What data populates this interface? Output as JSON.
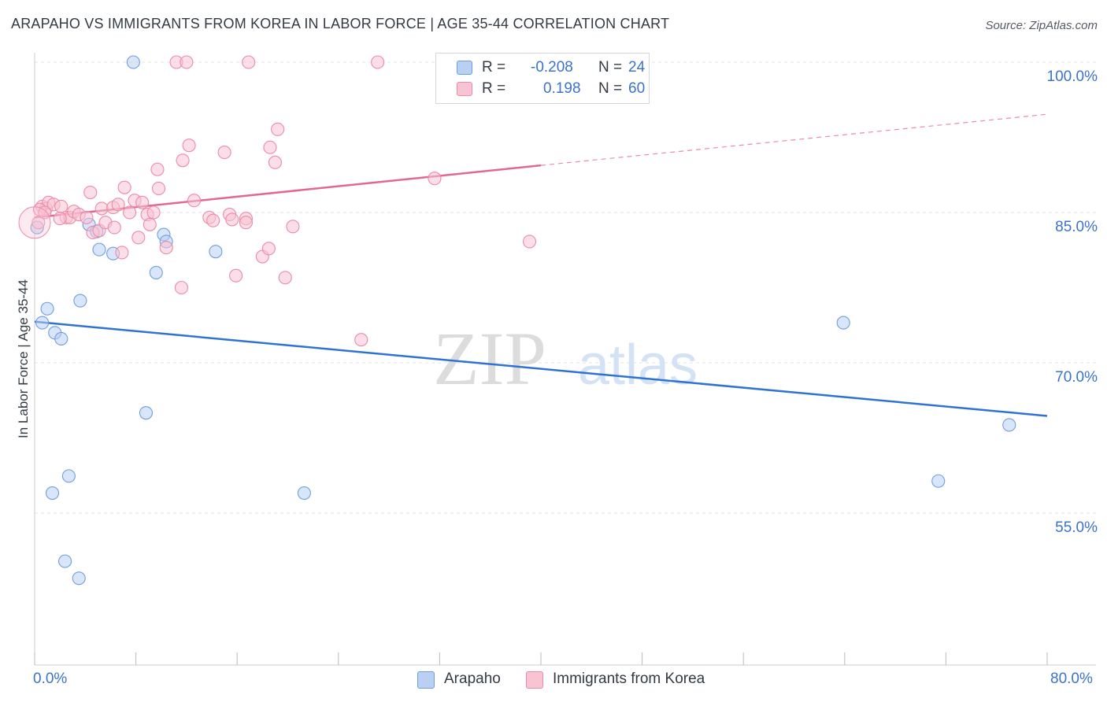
{
  "header": {
    "title": "ARAPAHO VS IMMIGRANTS FROM KOREA IN LABOR FORCE | AGE 35-44 CORRELATION CHART",
    "source": "Source: ZipAtlas.com"
  },
  "watermark": {
    "zip": "ZIP",
    "atlas": "atlas"
  },
  "legend": {
    "r_label": "R =",
    "n_label": "N =",
    "rows": [
      {
        "r": "-0.208",
        "n": "24"
      },
      {
        "r": "0.198",
        "n": "60"
      }
    ]
  },
  "chart_data": {
    "type": "scatter",
    "title": "ARAPAHO VS IMMIGRANTS FROM KOREA IN LABOR FORCE | AGE 35-44 CORRELATION CHART",
    "xlabel": "",
    "ylabel": "In Labor Force | Age 35-44",
    "xlim": [
      0,
      80
    ],
    "ylim": [
      40,
      102
    ],
    "x_tick_labels": [
      "0.0%",
      "80.0%"
    ],
    "y_ticks": [
      55,
      70,
      85,
      100
    ],
    "y_tick_labels": [
      "55.0%",
      "70.0%",
      "85.0%",
      "100.0%"
    ],
    "grid": true,
    "legend_position": "top-center",
    "series": [
      {
        "name": "Arapaho",
        "color": "#6f9ee0",
        "fill": "#b9d0f2",
        "points": [
          [
            0.2,
            83.5
          ],
          [
            0.6,
            74.0
          ],
          [
            1.0,
            75.4
          ],
          [
            1.6,
            73.0
          ],
          [
            2.1,
            72.4
          ],
          [
            1.4,
            57.0
          ],
          [
            2.7,
            58.7
          ],
          [
            2.4,
            50.2
          ],
          [
            3.5,
            48.5
          ],
          [
            3.6,
            76.2
          ],
          [
            4.3,
            83.8
          ],
          [
            4.9,
            83.1
          ],
          [
            5.1,
            81.3
          ],
          [
            6.2,
            80.9
          ],
          [
            7.8,
            100.0
          ],
          [
            8.8,
            65.0
          ],
          [
            9.6,
            79.0
          ],
          [
            10.2,
            82.8
          ],
          [
            10.4,
            82.1
          ],
          [
            14.3,
            81.1
          ],
          [
            21.3,
            57.0
          ],
          [
            63.9,
            74.0
          ],
          [
            71.4,
            58.2
          ],
          [
            77.0,
            63.8
          ]
        ],
        "trend": {
          "x": [
            0,
            80
          ],
          "y": [
            74.1,
            64.7
          ]
        }
      },
      {
        "name": "Immigrants from Korea",
        "color": "#ec8aa8",
        "fill": "#f8c3d3",
        "points": [
          [
            0.3,
            84.0
          ],
          [
            0.6,
            85.6
          ],
          [
            0.9,
            85.4
          ],
          [
            1.1,
            86.0
          ],
          [
            1.5,
            85.8
          ],
          [
            2.1,
            85.6
          ],
          [
            2.5,
            84.5
          ],
          [
            2.8,
            84.5
          ],
          [
            3.1,
            85.1
          ],
          [
            3.5,
            84.8
          ],
          [
            4.1,
            84.5
          ],
          [
            4.4,
            87.0
          ],
          [
            4.6,
            83.0
          ],
          [
            5.1,
            83.2
          ],
          [
            5.3,
            85.4
          ],
          [
            5.6,
            84.0
          ],
          [
            6.2,
            85.5
          ],
          [
            6.3,
            83.5
          ],
          [
            6.6,
            85.8
          ],
          [
            6.9,
            81.0
          ],
          [
            7.1,
            87.5
          ],
          [
            7.5,
            85.0
          ],
          [
            7.9,
            86.2
          ],
          [
            8.2,
            82.5
          ],
          [
            8.5,
            86.0
          ],
          [
            8.9,
            84.8
          ],
          [
            9.1,
            83.8
          ],
          [
            9.4,
            85.0
          ],
          [
            9.7,
            89.3
          ],
          [
            9.8,
            87.4
          ],
          [
            10.4,
            81.5
          ],
          [
            11.2,
            100.0
          ],
          [
            11.6,
            77.5
          ],
          [
            11.7,
            90.2
          ],
          [
            12.0,
            100.0
          ],
          [
            12.2,
            91.7
          ],
          [
            12.6,
            86.2
          ],
          [
            13.8,
            84.5
          ],
          [
            14.1,
            84.2
          ],
          [
            15.0,
            91.0
          ],
          [
            15.4,
            84.8
          ],
          [
            15.6,
            84.3
          ],
          [
            15.9,
            78.7
          ],
          [
            16.7,
            84.4
          ],
          [
            16.7,
            84.0
          ],
          [
            16.9,
            100.0
          ],
          [
            18.0,
            80.6
          ],
          [
            18.5,
            81.4
          ],
          [
            18.6,
            91.5
          ],
          [
            19.0,
            90.0
          ],
          [
            19.2,
            93.3
          ],
          [
            19.8,
            78.5
          ],
          [
            20.4,
            83.6
          ],
          [
            25.8,
            72.3
          ],
          [
            27.1,
            100.0
          ],
          [
            31.6,
            88.4
          ],
          [
            39.1,
            82.1
          ],
          [
            0.4,
            85.3
          ],
          [
            0.8,
            85.0
          ],
          [
            2.0,
            84.4
          ]
        ],
        "trend": {
          "x": [
            0,
            40
          ],
          "y": [
            84.5,
            89.7
          ]
        },
        "trend_extension": {
          "x": [
            40,
            80
          ],
          "y": [
            89.7,
            94.8
          ]
        }
      }
    ]
  },
  "bottom_legend": [
    {
      "label": "Arapaho"
    },
    {
      "label": "Immigrants from Korea"
    }
  ]
}
